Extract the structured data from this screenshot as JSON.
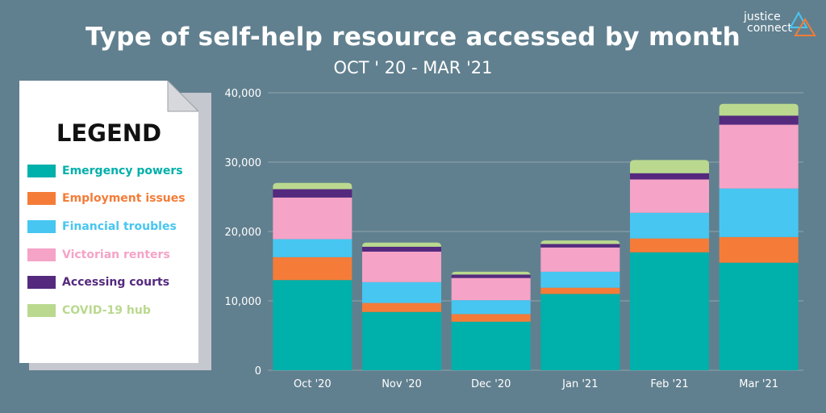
{
  "title": "Type of self-help resource accessed by month",
  "subtitle": "OCT ' 20 - MAR '21",
  "logo": {
    "line1": "justice",
    "line2": "connect",
    "icon": "triangle-logo-icon"
  },
  "legend": {
    "title": "LEGEND",
    "items": [
      {
        "label": "Emergency powers",
        "color": "#00b0aa"
      },
      {
        "label": "Employment issues",
        "color": "#f47c38"
      },
      {
        "label": "Financial troubles",
        "color": "#47c6f1"
      },
      {
        "label": "Victorian renters",
        "color": "#f5a3c7"
      },
      {
        "label": "Accessing courts",
        "color": "#55297e"
      },
      {
        "label": "COVID-19 hub",
        "color": "#bad98f"
      }
    ]
  },
  "chart_data": {
    "type": "bar",
    "stacked": true,
    "categories": [
      "Oct '20",
      "Nov '20",
      "Dec '20",
      "Jan '21",
      "Feb '21",
      "Mar '21"
    ],
    "ylim": [
      0,
      40000
    ],
    "yticks": [
      0,
      10000,
      20000,
      30000,
      40000
    ],
    "ytick_labels": [
      "0",
      "10,000",
      "20,000",
      "30,000",
      "40,000"
    ],
    "grid": true,
    "series": [
      {
        "name": "Emergency powers",
        "values": [
          13000,
          8400,
          7000,
          11000,
          17000,
          15500
        ]
      },
      {
        "name": "Employment issues",
        "values": [
          3300,
          1300,
          1100,
          900,
          2000,
          3700
        ]
      },
      {
        "name": "Financial troubles",
        "values": [
          2600,
          3000,
          2000,
          2300,
          3700,
          7000
        ]
      },
      {
        "name": "Victorian renters",
        "values": [
          6000,
          4400,
          3200,
          3500,
          4800,
          9200
        ]
      },
      {
        "name": "Accessing courts",
        "values": [
          1200,
          700,
          500,
          500,
          900,
          1300
        ]
      },
      {
        "name": "COVID-19 hub",
        "values": [
          900,
          600,
          400,
          500,
          1900,
          1700
        ]
      }
    ]
  }
}
